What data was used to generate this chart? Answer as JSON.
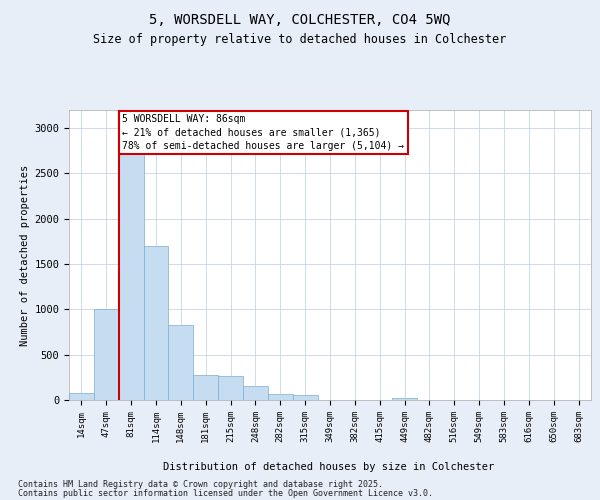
{
  "title1": "5, WORSDELL WAY, COLCHESTER, CO4 5WQ",
  "title2": "Size of property relative to detached houses in Colchester",
  "xlabel": "Distribution of detached houses by size in Colchester",
  "ylabel": "Number of detached properties",
  "categories": [
    "14sqm",
    "47sqm",
    "81sqm",
    "114sqm",
    "148sqm",
    "181sqm",
    "215sqm",
    "248sqm",
    "282sqm",
    "315sqm",
    "349sqm",
    "382sqm",
    "415sqm",
    "449sqm",
    "482sqm",
    "516sqm",
    "549sqm",
    "583sqm",
    "616sqm",
    "650sqm",
    "683sqm"
  ],
  "values": [
    75,
    1000,
    3000,
    1700,
    830,
    280,
    260,
    155,
    65,
    55,
    0,
    0,
    0,
    25,
    0,
    0,
    0,
    0,
    0,
    0,
    0
  ],
  "bar_color": "#c6dcf0",
  "bar_edgecolor": "#7aafd4",
  "vline_x_index": 2,
  "vline_color": "#cc0000",
  "annotation_text": "5 WORSDELL WAY: 86sqm\n← 21% of detached houses are smaller (1,365)\n78% of semi-detached houses are larger (5,104) →",
  "annotation_box_facecolor": "#ffffff",
  "annotation_box_edgecolor": "#cc0000",
  "footer1": "Contains HM Land Registry data © Crown copyright and database right 2025.",
  "footer2": "Contains public sector information licensed under the Open Government Licence v3.0.",
  "ylim": [
    0,
    3200
  ],
  "yticks": [
    0,
    500,
    1000,
    1500,
    2000,
    2500,
    3000
  ],
  "background_color": "#e8eef8",
  "plot_background": "#ffffff",
  "grid_color": "#c8d4e8"
}
